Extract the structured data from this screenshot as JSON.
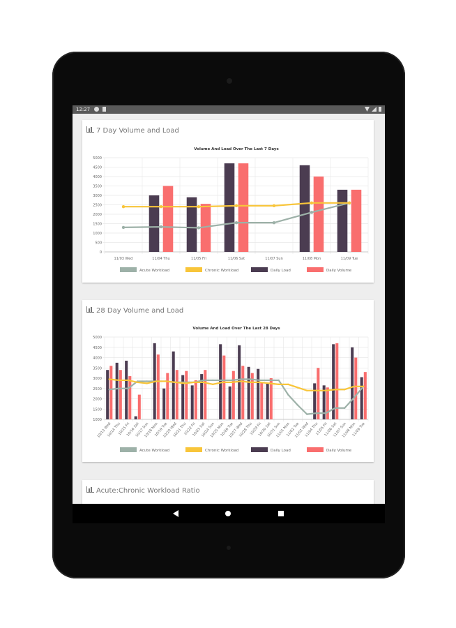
{
  "status_bar": {
    "time": "12:27"
  },
  "colors": {
    "acute": "#9db1a8",
    "chronic": "#f8c53a",
    "load": "#4b3c51",
    "volume": "#f96e6e"
  },
  "cards": [
    {
      "title": "7 Day Volume and Load"
    },
    {
      "title": "28 Day Volume and Load"
    },
    {
      "title": "Acute:Chronic Workload Ratio"
    }
  ],
  "chart_data": [
    {
      "type": "bar",
      "title": "Volume And Load Over The Last 7 Days",
      "categories": [
        "11/03 Wed",
        "11/04 Thu",
        "11/05 Fri",
        "11/06 Sat",
        "11/07 Sun",
        "11/08 Mon",
        "11/09 Tue"
      ],
      "ylim": [
        0,
        5000
      ],
      "yticks": [
        0,
        500,
        1000,
        1500,
        2000,
        2500,
        3000,
        3500,
        4000,
        4500,
        5000
      ],
      "grid": true,
      "legend": "bottom",
      "series": [
        {
          "name": "Acute Workload",
          "kind": "line",
          "values": [
            1300,
            1330,
            1280,
            1550,
            1550,
            2100,
            2600
          ]
        },
        {
          "name": "Chronic Workload",
          "kind": "line",
          "values": [
            2400,
            2400,
            2400,
            2450,
            2450,
            2600,
            2600
          ]
        },
        {
          "name": "Daily Load",
          "kind": "bar",
          "values": [
            null,
            3000,
            2900,
            4700,
            null,
            4600,
            3300
          ]
        },
        {
          "name": "Daily Volume",
          "kind": "bar",
          "values": [
            null,
            3500,
            2550,
            4700,
            null,
            4000,
            3300
          ]
        }
      ]
    },
    {
      "type": "bar",
      "title": "Volume And Load Over The Last 28 Days",
      "categories": [
        "10/13 Wed",
        "10/14 Thu",
        "10/15 Fri",
        "10/16 Sat",
        "10/17 Sun",
        "10/18 Mon",
        "10/19 Tue",
        "10/20 Wed",
        "10/21 Thu",
        "10/22 Fri",
        "10/23 Sat",
        "10/24 Sun",
        "10/25 Mon",
        "10/26 Tue",
        "10/27 Wed",
        "10/28 Thu",
        "10/29 Fri",
        "10/30 Sat",
        "10/31 Sun",
        "11/01 Mon",
        "11/02 Tue",
        "11/03 Wed",
        "11/04 Thu",
        "11/05 Fri",
        "11/06 Sat",
        "11/07 Sun",
        "11/08 Mon",
        "11/09 Tue"
      ],
      "ylim": [
        1000,
        5000
      ],
      "yticks": [
        1000,
        1500,
        2000,
        2500,
        3000,
        3500,
        4000,
        4500,
        5000
      ],
      "grid": true,
      "legend": "bottom",
      "series": [
        {
          "name": "Acute Workload",
          "kind": "line",
          "values": [
            2450,
            2500,
            2500,
            2850,
            2850,
            2850,
            2850,
            2800,
            2800,
            2800,
            2900,
            2900,
            2900,
            2900,
            2950,
            2950,
            2900,
            2900,
            2900,
            2200,
            1700,
            1250,
            1300,
            1300,
            1550,
            1550,
            2050,
            2600
          ]
        },
        {
          "name": "Chronic Workload",
          "kind": "line",
          "values": [
            2950,
            2900,
            2900,
            2800,
            2750,
            2850,
            2850,
            2800,
            2750,
            2800,
            2800,
            2700,
            2800,
            2800,
            2850,
            2800,
            2800,
            2750,
            2700,
            2700,
            2550,
            2400,
            2400,
            2400,
            2450,
            2450,
            2600,
            2600
          ]
        },
        {
          "name": "Daily Load",
          "kind": "bar",
          "values": [
            3400,
            3750,
            3850,
            1150,
            null,
            4700,
            2500,
            4300,
            3150,
            2650,
            3200,
            null,
            4650,
            2600,
            4600,
            3550,
            3450,
            2750,
            null,
            null,
            null,
            null,
            2750,
            2650,
            4650,
            null,
            4500,
            3050
          ]
        },
        {
          "name": "Daily Volume",
          "kind": "bar",
          "values": [
            3600,
            3400,
            3100,
            2200,
            null,
            4150,
            3250,
            3400,
            3350,
            2900,
            3400,
            null,
            4100,
            3350,
            3600,
            3250,
            2800,
            3000,
            null,
            null,
            null,
            null,
            3500,
            2550,
            4700,
            null,
            4000,
            3300
          ]
        }
      ]
    }
  ]
}
